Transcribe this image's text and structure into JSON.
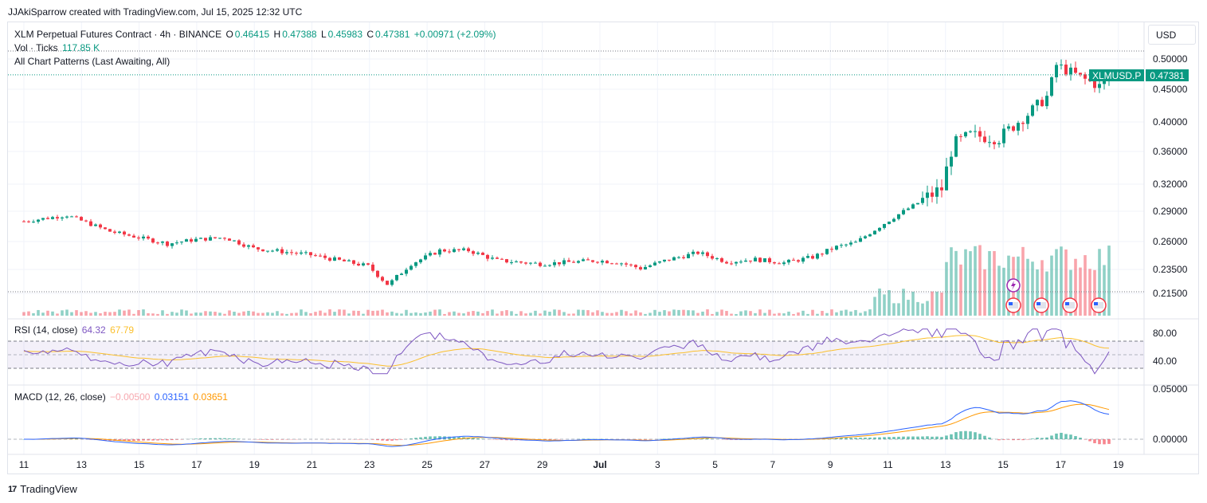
{
  "caption": "JJAkiSparrow created with TradingView.com, Jul 15, 2025 12:32 UTC",
  "header": {
    "title": "XLM Perpetual Futures Contract · 4h · BINANCE",
    "o_label": "O",
    "o_value": "0.46415",
    "h_label": "H",
    "h_value": "0.47388",
    "l_label": "L",
    "l_value": "0.45983",
    "c_label": "C",
    "c_value": "0.47381",
    "change": "+0.00971 (+2.09%)",
    "vol_label": "Vol · Ticks",
    "vol_value": "117.85 K",
    "patterns": "All Chart Patterns (Last Awaiting, All)"
  },
  "currency_button": "USD",
  "price_tag": {
    "symbol": "XLMUSD.P",
    "value": "0.47381"
  },
  "brand": "TradingView",
  "colors": {
    "up": "#089981",
    "down": "#f23645",
    "rsi": "#7e57c2",
    "rsi_ma": "#fbc02d",
    "macd": "#2962ff",
    "signal": "#ff9800"
  },
  "rsi_legend": {
    "label": "RSI (14, close)",
    "value": "64.32",
    "ma": "67.79"
  },
  "macd_legend": {
    "label": "MACD (12, 26, close)",
    "hist": "−0.00500",
    "macd": "0.03151",
    "signal": "0.03651"
  },
  "chart_data": {
    "type": "candlestick",
    "price_axis_ticks": [
      "0.50000",
      "0.45000",
      "0.40000",
      "0.36000",
      "0.32000",
      "0.29000",
      "0.26000",
      "0.23500",
      "0.21500"
    ],
    "rsi_axis_ticks": [
      "80.00",
      "40.00"
    ],
    "macd_axis_ticks": [
      "0.05000",
      "0.00000"
    ],
    "x_ticks": [
      "11",
      "13",
      "15",
      "17",
      "19",
      "21",
      "23",
      "25",
      "27",
      "29",
      "Jul",
      "3",
      "5",
      "7",
      "9",
      "11",
      "13",
      "15",
      "17",
      "19"
    ],
    "close_path": [
      [
        0,
        0.28
      ],
      [
        1.5,
        0.286
      ],
      [
        3,
        0.27
      ],
      [
        5,
        0.258
      ],
      [
        6,
        0.262
      ],
      [
        7,
        0.264
      ],
      [
        8,
        0.254
      ],
      [
        10,
        0.248
      ],
      [
        12,
        0.238
      ],
      [
        12.7,
        0.222
      ],
      [
        13.5,
        0.24
      ],
      [
        14.5,
        0.252
      ],
      [
        15.5,
        0.252
      ],
      [
        16.5,
        0.243
      ],
      [
        18,
        0.24
      ],
      [
        20,
        0.243
      ],
      [
        20.8,
        0.241
      ],
      [
        21.5,
        0.236
      ],
      [
        22.5,
        0.244
      ],
      [
        23.5,
        0.25
      ],
      [
        24.5,
        0.242
      ],
      [
        25.5,
        0.244
      ],
      [
        26.5,
        0.241
      ],
      [
        27.5,
        0.246
      ],
      [
        28.3,
        0.255
      ],
      [
        29,
        0.259
      ],
      [
        30,
        0.278
      ],
      [
        31,
        0.296
      ],
      [
        32,
        0.315
      ],
      [
        32.4,
        0.37
      ],
      [
        33,
        0.382
      ],
      [
        34,
        0.378
      ],
      [
        35,
        0.412
      ],
      [
        35.7,
        0.44
      ],
      [
        36,
        0.49
      ],
      [
        37,
        0.466
      ],
      [
        37.5,
        0.455
      ],
      [
        37.9,
        0.474
      ]
    ],
    "x_range_days": [
      0,
      40
    ]
  }
}
